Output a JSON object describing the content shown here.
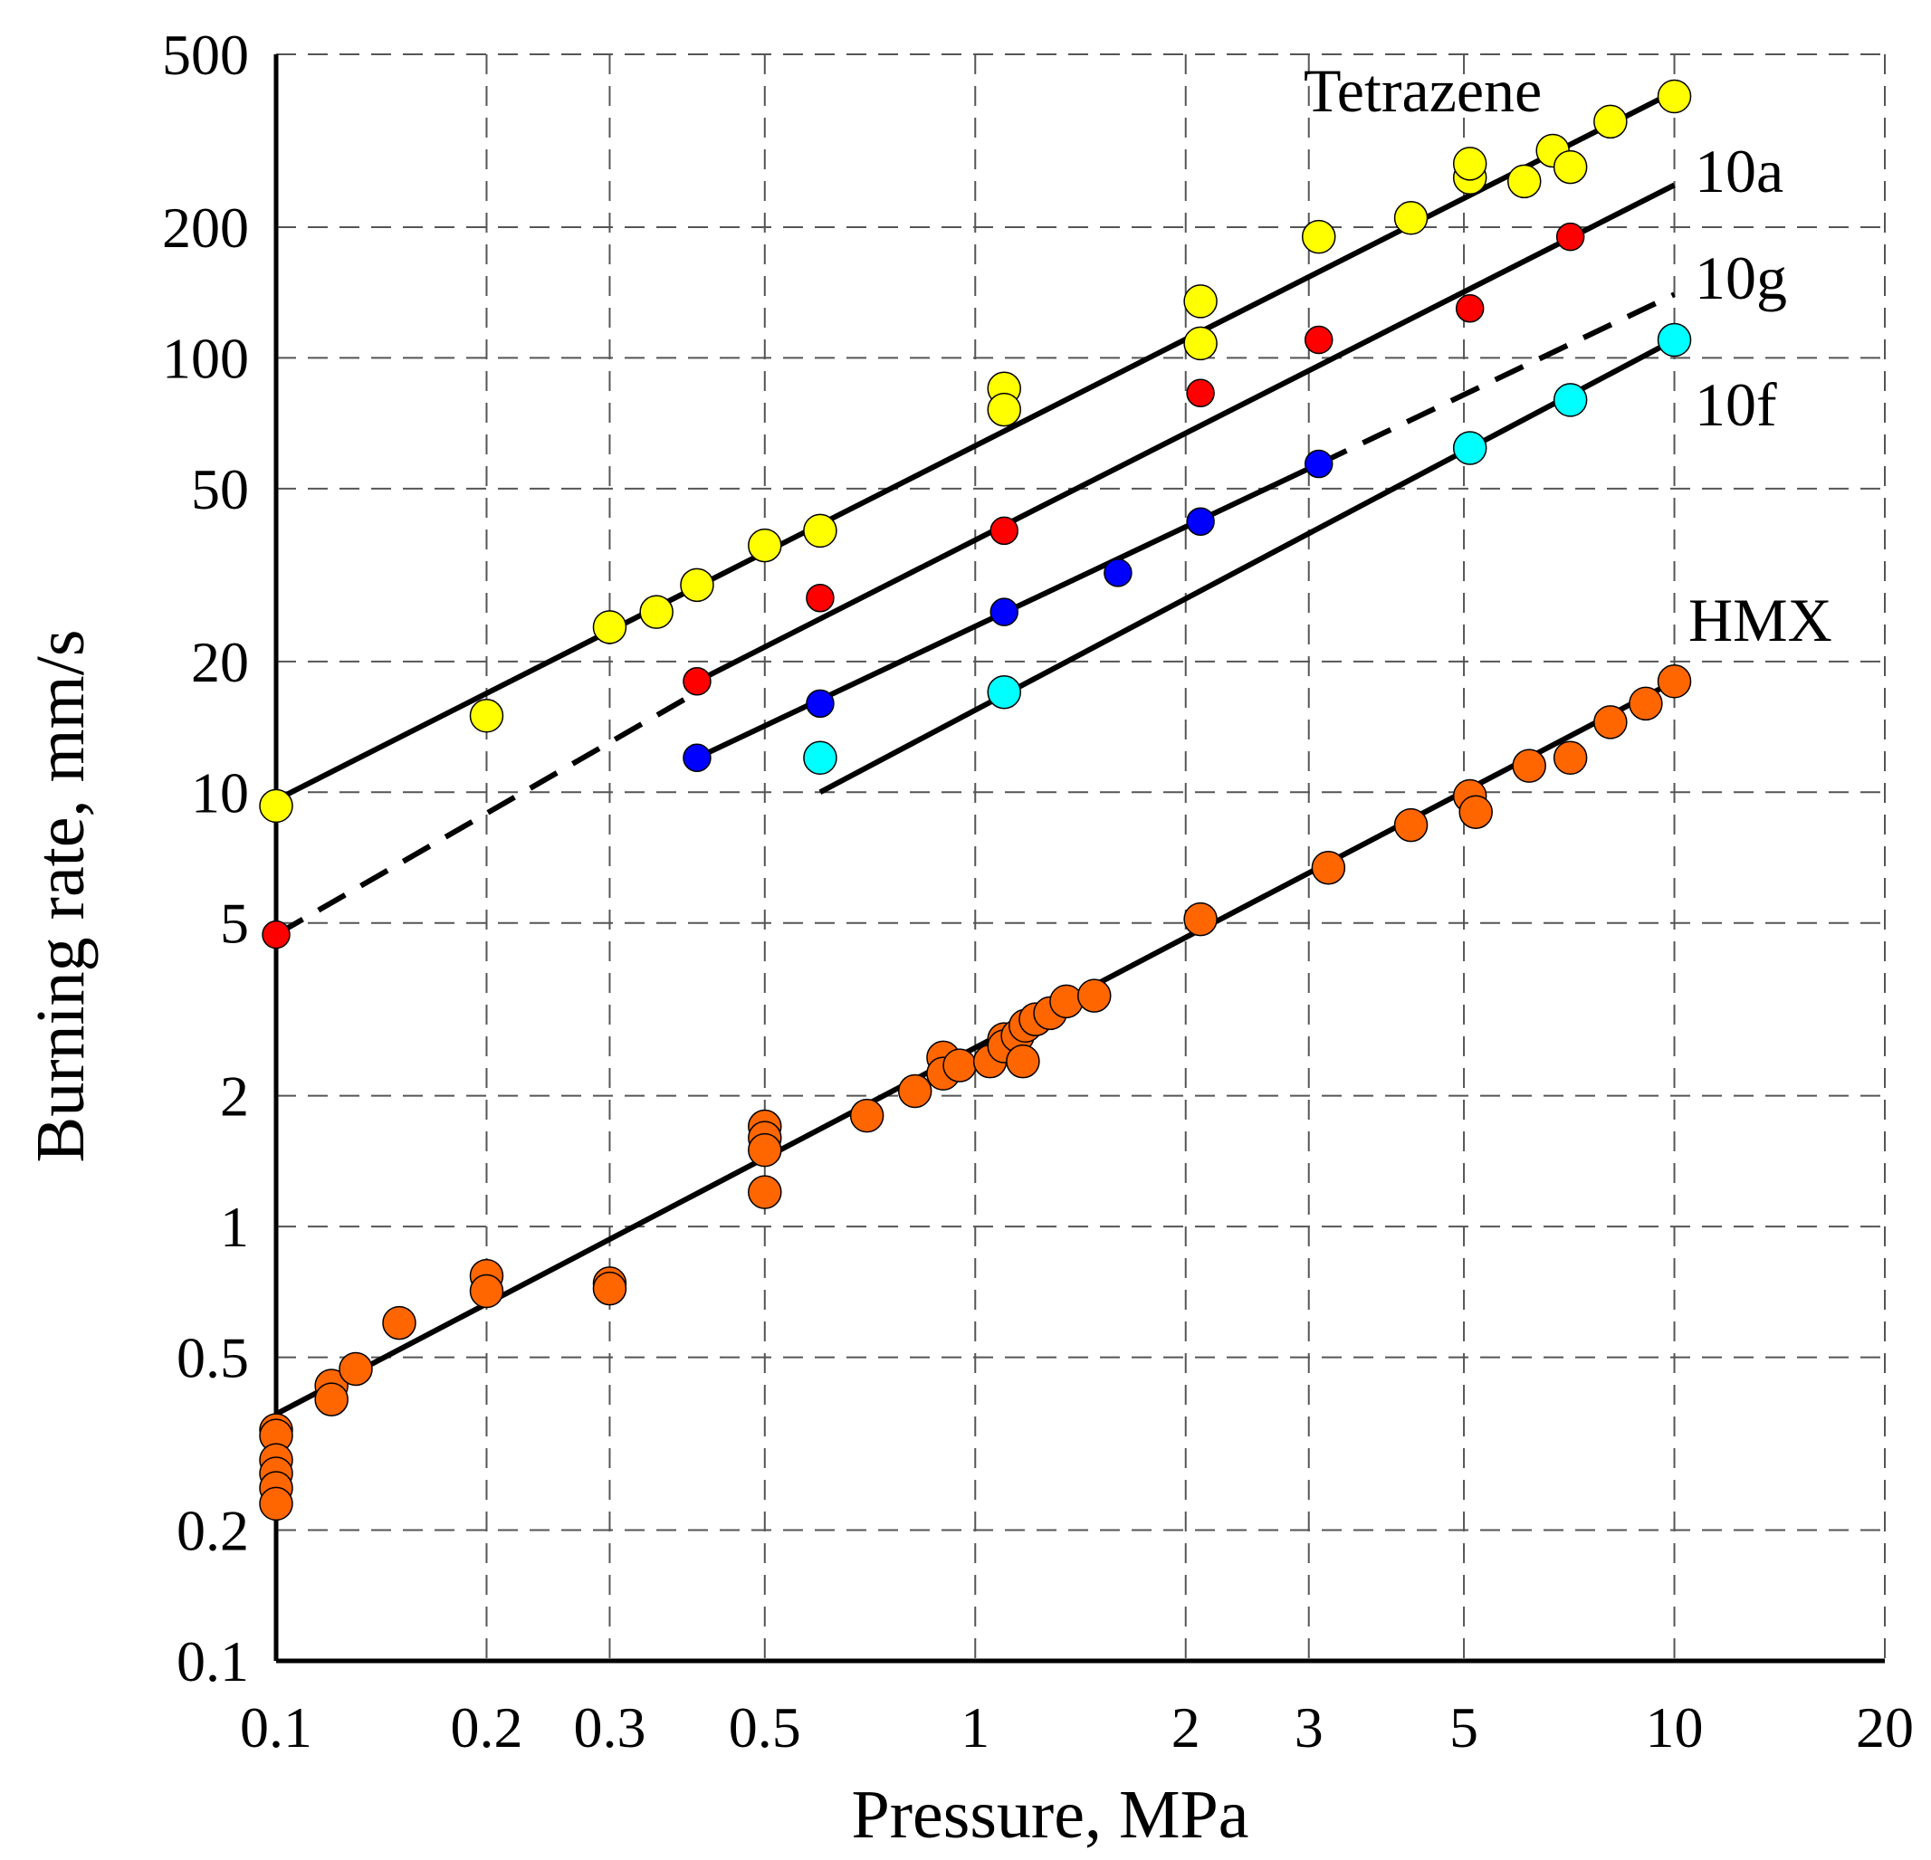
{
  "chart_data": {
    "type": "scatter",
    "xscale": "log",
    "yscale": "log",
    "xlabel": "Pressure, MPa",
    "ylabel": "Burning rate, mm/s",
    "xlim": [
      0.1,
      20
    ],
    "ylim": [
      0.1,
      500
    ],
    "xticks": [
      0.1,
      0.2,
      0.3,
      0.5,
      1,
      2,
      3,
      5,
      10,
      20
    ],
    "xtick_labels": [
      "0.1",
      "0.2",
      "0.3",
      "0.5",
      "1",
      "2",
      "3",
      "5",
      "10",
      "20"
    ],
    "yticks": [
      0.1,
      0.2,
      0.5,
      1,
      2,
      5,
      10,
      20,
      50,
      100,
      200,
      500
    ],
    "ytick_labels": [
      "0.1",
      "0.2",
      "0.5",
      "1",
      "2",
      "5",
      "10",
      "20",
      "50",
      "100",
      "200",
      "500"
    ],
    "grid": true,
    "series": [
      {
        "name": "Tetrazene",
        "color": "#ffff00",
        "marker_size": "large",
        "points": [
          [
            0.1,
            9.3
          ],
          [
            0.2,
            15
          ],
          [
            0.3,
            24
          ],
          [
            0.35,
            26
          ],
          [
            0.4,
            30
          ],
          [
            0.5,
            37
          ],
          [
            0.6,
            40
          ],
          [
            1.1,
            85
          ],
          [
            1.1,
            76
          ],
          [
            2.1,
            135
          ],
          [
            2.1,
            108
          ],
          [
            3.1,
            190
          ],
          [
            4.2,
            210
          ],
          [
            5.1,
            260
          ],
          [
            5.1,
            280
          ],
          [
            6.1,
            255
          ],
          [
            6.7,
            300
          ],
          [
            7.1,
            275
          ],
          [
            8.1,
            350
          ],
          [
            10,
            400
          ]
        ],
        "fits": [
          {
            "x": [
              0.1,
              10
            ],
            "y": [
              9.6,
              410
            ],
            "style": "solid"
          }
        ]
      },
      {
        "name": "10a",
        "color": "#ff0000",
        "marker_size": "small",
        "points": [
          [
            0.1,
            4.7
          ],
          [
            0.4,
            18
          ],
          [
            0.6,
            28
          ],
          [
            1.1,
            40
          ],
          [
            2.1,
            83
          ],
          [
            3.1,
            110
          ],
          [
            5.1,
            130
          ],
          [
            7.1,
            190
          ]
        ],
        "fits": [
          {
            "x": [
              0.1,
              0.4
            ],
            "y": [
              4.7,
              17
            ],
            "style": "dashed"
          },
          {
            "x": [
              0.4,
              10
            ],
            "y": [
              18,
              250
            ],
            "style": "solid"
          }
        ]
      },
      {
        "name": "10g",
        "color": "#0000ff",
        "marker_size": "small",
        "points": [
          [
            0.4,
            12
          ],
          [
            0.6,
            16
          ],
          [
            1.1,
            26
          ],
          [
            1.6,
            32
          ],
          [
            2.1,
            42
          ],
          [
            3.1,
            57
          ]
        ],
        "fits": [
          {
            "x": [
              0.4,
              3.1
            ],
            "y": [
              12,
              57
            ],
            "style": "solid"
          },
          {
            "x": [
              3.1,
              10
            ],
            "y": [
              57,
              140
            ],
            "style": "dashed"
          }
        ]
      },
      {
        "name": "10f",
        "color": "#00ffff",
        "marker_size": "large",
        "points": [
          [
            0.6,
            12
          ],
          [
            1.1,
            17
          ],
          [
            5.1,
            62
          ],
          [
            7.1,
            80
          ],
          [
            10,
            110
          ]
        ],
        "fits": [
          {
            "x": [
              0.6,
              10
            ],
            "y": [
              10,
              110
            ],
            "style": "solid"
          }
        ]
      },
      {
        "name": "HMX",
        "color": "#ff6600",
        "marker_size": "large",
        "points": [
          [
            0.1,
            0.34
          ],
          [
            0.1,
            0.33
          ],
          [
            0.1,
            0.29
          ],
          [
            0.1,
            0.27
          ],
          [
            0.1,
            0.25
          ],
          [
            0.1,
            0.23
          ],
          [
            0.12,
            0.43
          ],
          [
            0.12,
            0.4
          ],
          [
            0.13,
            0.47
          ],
          [
            0.15,
            0.6
          ],
          [
            0.2,
            0.77
          ],
          [
            0.2,
            0.71
          ],
          [
            0.3,
            0.74
          ],
          [
            0.3,
            0.72
          ],
          [
            0.5,
            1.7
          ],
          [
            0.5,
            1.6
          ],
          [
            0.5,
            1.5
          ],
          [
            0.5,
            1.2
          ],
          [
            0.7,
            1.8
          ],
          [
            0.82,
            2.05
          ],
          [
            0.9,
            2.45
          ],
          [
            0.9,
            2.25
          ],
          [
            0.95,
            2.35
          ],
          [
            1.05,
            2.4
          ],
          [
            1.1,
            2.7
          ],
          [
            1.1,
            2.6
          ],
          [
            1.15,
            2.75
          ],
          [
            1.17,
            2.4
          ],
          [
            1.18,
            2.9
          ],
          [
            1.22,
            3.0
          ],
          [
            1.28,
            3.1
          ],
          [
            1.35,
            3.3
          ],
          [
            1.48,
            3.4
          ],
          [
            2.1,
            5.1
          ],
          [
            3.2,
            6.7
          ],
          [
            4.2,
            8.4
          ],
          [
            5.1,
            9.8
          ],
          [
            5.2,
            9.0
          ],
          [
            6.2,
            11.5
          ],
          [
            7.1,
            12
          ],
          [
            8.1,
            14.5
          ],
          [
            9.1,
            16
          ],
          [
            10,
            18
          ]
        ],
        "fits": [
          {
            "x": [
              0.1,
              10
            ],
            "y": [
              0.37,
              18
            ],
            "style": "solid"
          }
        ]
      }
    ],
    "annotations": [
      "Tetrazene",
      "10a",
      "10g",
      "10f",
      "HMX"
    ]
  }
}
